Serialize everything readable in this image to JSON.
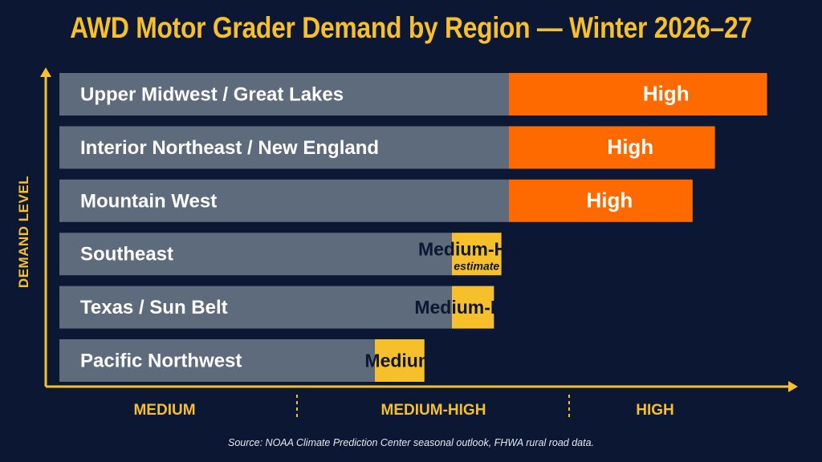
{
  "chart_data": {
    "type": "bar",
    "orientation": "horizontal",
    "title": "AWD Motor Grader Demand by Region — Winter 2026–27",
    "ylabel": "DEMAND LEVEL",
    "xlabel": "",
    "x_tick_labels": [
      "MEDIUM",
      "MEDIUM-HIGH",
      "HIGH"
    ],
    "categories": [
      "Upper Midwest / Great Lakes",
      "Interior Northeast / New England",
      "Mountain West",
      "Southeast",
      "Texas / Sun Belt",
      "Pacific Northwest"
    ],
    "levels": [
      "High",
      "High",
      "High",
      "Medium-High",
      "Medium-High",
      "Medium"
    ],
    "level_notes": [
      "",
      "",
      "",
      "estimate",
      "",
      ""
    ],
    "values": [
      2.85,
      2.64,
      2.55,
      1.78,
      1.75,
      1.47
    ],
    "xlim": [
      0,
      3
    ],
    "colors": {
      "High": "#ff6a00",
      "Medium-High": "#f7bf2a",
      "Medium": "#f7bf2a",
      "base": "#5d6b7c",
      "axis": "#f7bf2a",
      "background": "#0b1733"
    },
    "source": "Source: NOAA Climate Prediction Center seasonal outlook, FHWA rural road data."
  }
}
